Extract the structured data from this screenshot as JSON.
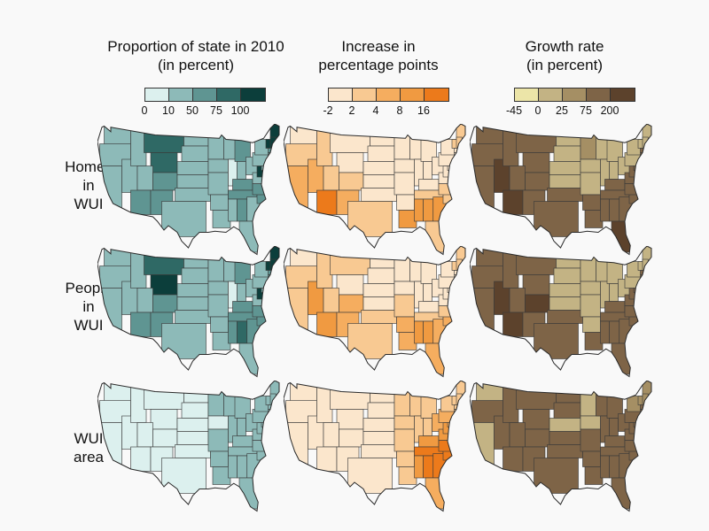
{
  "columns": [
    {
      "title_line1": "Proportion of state in 2010",
      "title_line2": "(in percent)",
      "legend_colors": [
        "#dcf0ee",
        "#8dbab8",
        "#5f9592",
        "#2f6965",
        "#0c3e3b"
      ],
      "legend_ticks": [
        "0",
        "10",
        "50",
        "75",
        "100"
      ]
    },
    {
      "title_line1": "Increase in",
      "title_line2": "percentage points",
      "legend_colors": [
        "#fbe6cc",
        "#f8c992",
        "#f5ad5f",
        "#f09a41",
        "#ec7a1b"
      ],
      "legend_ticks": [
        "-2",
        "2",
        "4",
        "8",
        "16"
      ]
    },
    {
      "title_line1": "Growth rate",
      "title_line2": "(in percent)",
      "legend_colors": [
        "#ece5a8",
        "#c3b384",
        "#a58f64",
        "#7e6447",
        "#5c422c"
      ],
      "legend_ticks": [
        "-45",
        "0",
        "25",
        "75",
        "200"
      ]
    }
  ],
  "rows": [
    {
      "line1": "Homes",
      "line2": "in",
      "line3": "WUI"
    },
    {
      "line1": "People",
      "line2": "in",
      "line3": "WUI"
    },
    {
      "line1": "WUI",
      "line2": "area",
      "line3": ""
    }
  ]
}
